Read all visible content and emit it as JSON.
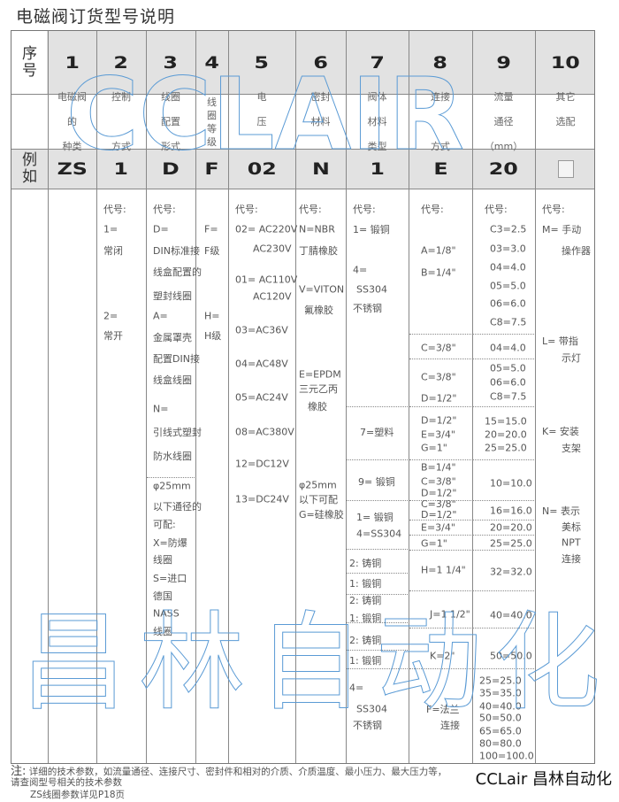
{
  "title": "电磁阀订货型号说明",
  "header": {
    "row_label": "序号",
    "numbers": [
      "1",
      "2",
      "3",
      "4",
      "5",
      "6",
      "7",
      "8",
      "9",
      "10"
    ],
    "labels": [
      [
        "电磁阀",
        "的",
        "种类"
      ],
      [
        "控制",
        "",
        "方式"
      ],
      [
        "线圈",
        "配置",
        "形式"
      ],
      [
        "线",
        "圈",
        "等",
        "级"
      ],
      [
        "电",
        "压",
        ""
      ],
      [
        "密封",
        "材料",
        ""
      ],
      [
        "阀体",
        "材料",
        "类型"
      ],
      [
        "连接",
        "",
        "方式"
      ],
      [
        "流量",
        "通径",
        "（mm）"
      ],
      [
        "其它",
        "选配",
        ""
      ]
    ]
  },
  "example": {
    "row_label": "例如",
    "values": [
      "ZS",
      "1",
      "D",
      "F",
      "02",
      "N",
      "1",
      "E",
      "20",
      ""
    ],
    "last_is_checkbox": true
  },
  "body": {
    "col1": [],
    "col2": [
      "代号:",
      "1=",
      "常闭",
      "2=",
      "常开"
    ],
    "col3": [
      "代号:",
      "D=",
      "DIN标准接",
      "线盒配置的",
      "塑封线圈",
      "A=",
      "金属罩壳",
      "配置DIN接",
      "线盒线圈",
      "N=",
      "引线式塑封",
      "防水线圈",
      "φ25mm",
      "以下通径的",
      "可配:",
      "X=防爆",
      "线圈",
      "S=进口",
      "德国",
      "NASS",
      "线圈"
    ],
    "col4": [
      "F=",
      "F级",
      "H=",
      "H级"
    ],
    "col5": [
      "代号:",
      "02= AC220V",
      "AC230V",
      "01= AC110V",
      "AC120V",
      "03=AC36V",
      "04=AC48V",
      "05=AC24V",
      "08=AC380V",
      "12=DC12V",
      "13=DC24V"
    ],
    "col6": [
      "代号:",
      "N=NBR",
      "丁腈橡胶",
      "V=VITON",
      "氟橡胶",
      "E=EPDM",
      "三元乙丙",
      "橡胶",
      "φ25mm",
      "以下可配",
      "G=硅橡胶"
    ],
    "col7": [
      "代号:",
      "1= 锻铜",
      "4=",
      "SS304",
      "不锈钢",
      "7=塑料",
      "9= 锻铜",
      "1= 锻铜",
      "4=SS304",
      "2: 铸铜",
      "1: 锻铜",
      "2: 铸铜",
      "1: 锻铜",
      "2: 铸铜",
      "1: 锻铜",
      "4=",
      "SS304",
      "不锈钢"
    ],
    "col8": [
      "代号:",
      "A=1/8\"",
      "B=1/4\"",
      "C=3/8\"",
      "C=3/8\"",
      "D=1/2\"",
      "D=1/2\"",
      "E=3/4\"",
      "G=1\"",
      "B=1/4\"",
      "C=3/8\"",
      "D=1/2\"",
      "C=3/8\" D=1/2\"",
      "E=3/4\"",
      "G=1\"",
      "H=1 1/4\"",
      "J=1 1/2\"",
      "K=2\"",
      "F=法兰",
      "连接"
    ],
    "col9": [
      "代号:",
      "C3=2.5",
      "03=3.0",
      "04=4.0",
      "05=5.0",
      "06=6.0",
      "C8=7.5",
      "04=4.0",
      "05=5.0",
      "06=6.0",
      "C8=7.5",
      "15=15.0",
      "20=20.0",
      "25=25.0",
      "10=10.0",
      "16=16.0",
      "20=20.0",
      "25=25.0",
      "32=32.0",
      "40=40.0",
      "50=50.0",
      "25=25.0",
      "35=35.0",
      "40=40.0",
      "50=50.0",
      "65=65.0",
      "80=80.0",
      "100=100.0"
    ],
    "col10": [
      "代号:",
      "M= 手动",
      "操作器",
      "L=  带指",
      "示灯",
      "K=  安装",
      "支架",
      "N=  表示",
      "美标",
      "NPT",
      "连接"
    ]
  },
  "note": {
    "prefix": "注:",
    "line1": "详细的技术参数，如流量通径、连接尺寸、密封件和相对的介质、介质温度、最小压力、最大压力等，请查阅型号相关的技术参数",
    "line2": "ZS线圈参数详见P18页"
  },
  "brand": "CCLair 昌林自动化",
  "watermark": {
    "latin": "CCLAIR",
    "chinese": "昌林自动化",
    "color": "#5b9bd5"
  },
  "colors": {
    "header_bg": "#e2e2e2",
    "border": "#888888",
    "text": "#555555"
  }
}
